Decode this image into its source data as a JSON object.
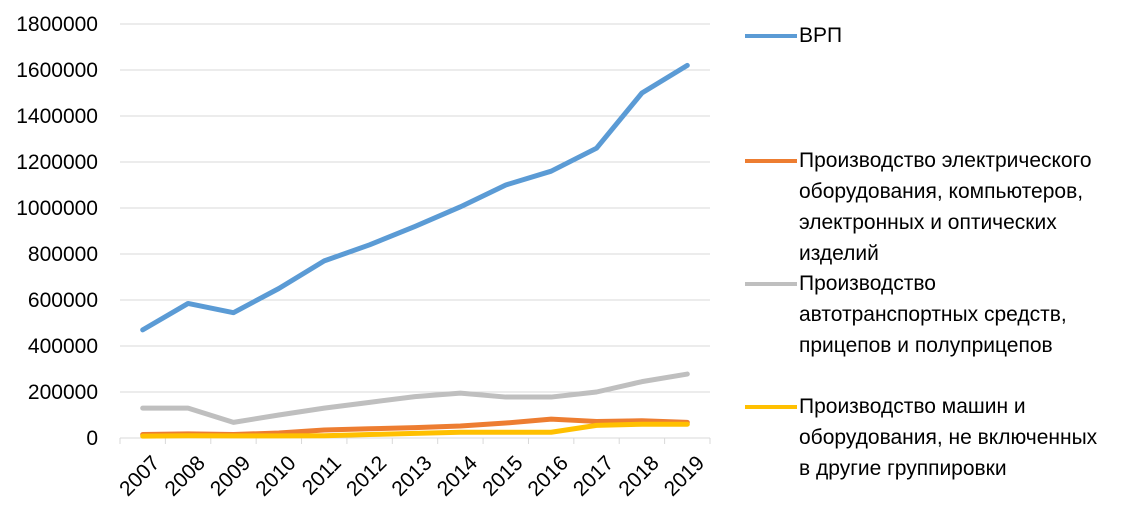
{
  "chart_data": {
    "type": "line",
    "categories": [
      "2007",
      "2008",
      "2009",
      "2010",
      "2011",
      "2012",
      "2013",
      "2014",
      "2015",
      "2016",
      "2017",
      "2018",
      "2019"
    ],
    "ylim": [
      0,
      1800000
    ],
    "yticks": [
      "0",
      "200000",
      "400000",
      "600000",
      "800000",
      "1000000",
      "1200000",
      "1400000",
      "1600000",
      "1800000"
    ],
    "grid": true,
    "legend_position": "right",
    "series": [
      {
        "name": "ВРП",
        "color": "#5B9BD5",
        "values": [
          470000,
          585000,
          545000,
          650000,
          770000,
          840000,
          920000,
          1005000,
          1100000,
          1160000,
          1260000,
          1500000,
          1620000
        ]
      },
      {
        "name": "Производство электрического\nоборудования, компьютеров,\nэлектронных и оптических\nизделий",
        "color": "#ED7D31",
        "values": [
          15000,
          18000,
          15000,
          22000,
          35000,
          40000,
          45000,
          52000,
          65000,
          82000,
          72000,
          75000,
          68000
        ]
      },
      {
        "name": "Производство\nавтотранспортных средств,\nприцепов и полуприцепов",
        "color": "#BFBFBF",
        "values": [
          130000,
          130000,
          68000,
          100000,
          130000,
          155000,
          180000,
          195000,
          178000,
          178000,
          200000,
          245000,
          278000
        ]
      },
      {
        "name": "Производство машин и\nоборудования, не включенных\nв другие группировки",
        "color": "#FFC000",
        "values": [
          8000,
          10000,
          9000,
          9000,
          10000,
          15000,
          20000,
          25000,
          25000,
          25000,
          55000,
          60000,
          60000
        ]
      }
    ]
  }
}
